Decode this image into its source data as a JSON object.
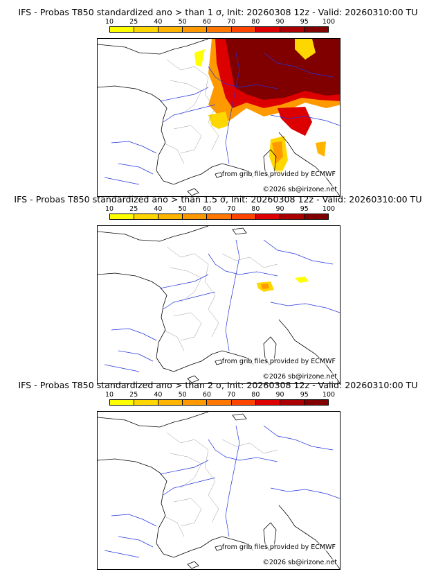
{
  "colorbar": {
    "ticks": [
      "10",
      "25",
      "40",
      "50",
      "60",
      "70",
      "80",
      "90",
      "95",
      "100"
    ],
    "colors": [
      "#ffff00",
      "#ffd700",
      "#ffb400",
      "#ff9900",
      "#ff7700",
      "#ff4400",
      "#dd0000",
      "#aa0000",
      "#800000"
    ]
  },
  "panels": [
    {
      "title": "IFS - Probas T850  standardized ano > than 1 σ, Init: 20260308 12z - Valid: 20260310:00 TU"
    },
    {
      "title": "IFS - Probas T850  standardized ano > than 1.5 σ, Init: 20260308 12z - Valid: 20260310:00 TU"
    },
    {
      "title": "IFS - Probas T850  standardized ano > than 2 σ, Init: 20260308 12z - Valid: 20260310:00 TU"
    }
  ],
  "credits": {
    "source": "from grib files provided by ECMWF",
    "copyright": "©2026 sb@irizone.net"
  },
  "map_colors": {
    "coast": "#000000",
    "rivers": "#2233dd",
    "borders": "#999999"
  }
}
